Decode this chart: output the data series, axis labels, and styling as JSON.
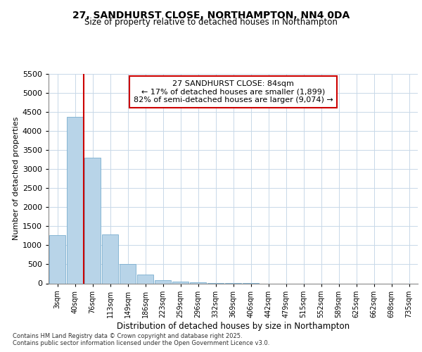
{
  "title_line1": "27, SANDHURST CLOSE, NORTHAMPTON, NN4 0DA",
  "title_line2": "Size of property relative to detached houses in Northampton",
  "xlabel": "Distribution of detached houses by size in Northampton",
  "ylabel": "Number of detached properties",
  "annotation_title": "27 SANDHURST CLOSE: 84sqm",
  "annotation_line1": "← 17% of detached houses are smaller (1,899)",
  "annotation_line2": "82% of semi-detached houses are larger (9,074) →",
  "footer_line1": "Contains HM Land Registry data © Crown copyright and database right 2025.",
  "footer_line2": "Contains public sector information licensed under the Open Government Licence v3.0.",
  "bar_color": "#b8d4e8",
  "bar_edge_color": "#7aaecf",
  "vertical_line_color": "#cc0000",
  "annotation_box_color": "#cc0000",
  "background_color": "#ffffff",
  "grid_color": "#c8d8e8",
  "categories": [
    "3sqm",
    "40sqm",
    "76sqm",
    "113sqm",
    "149sqm",
    "186sqm",
    "223sqm",
    "259sqm",
    "296sqm",
    "332sqm",
    "369sqm",
    "406sqm",
    "442sqm",
    "479sqm",
    "515sqm",
    "552sqm",
    "589sqm",
    "625sqm",
    "662sqm",
    "698sqm",
    "735sqm"
  ],
  "values": [
    1270,
    4380,
    3300,
    1280,
    500,
    230,
    90,
    50,
    30,
    10,
    5,
    2,
    0,
    0,
    0,
    0,
    0,
    0,
    0,
    0,
    0
  ],
  "ylim": [
    0,
    5500
  ],
  "yticks": [
    0,
    500,
    1000,
    1500,
    2000,
    2500,
    3000,
    3500,
    4000,
    4500,
    5000,
    5500
  ],
  "vline_x": 1.5
}
